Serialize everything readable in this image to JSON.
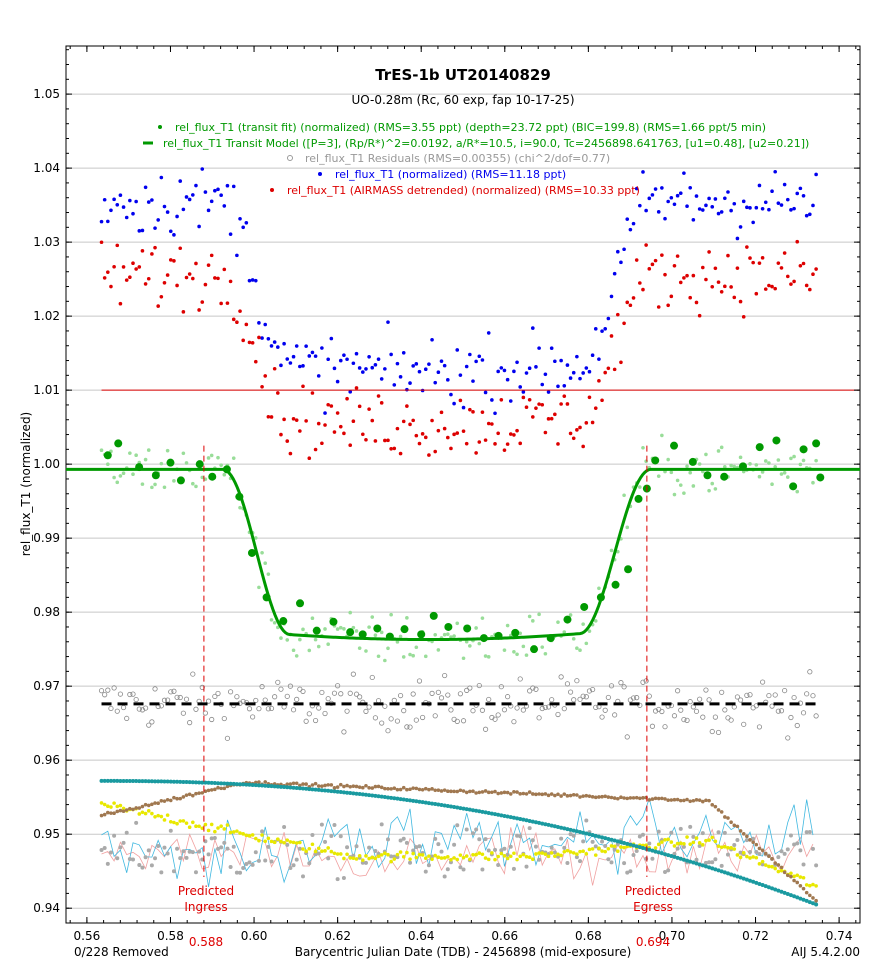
{
  "chart_data": {
    "type": "scatter",
    "title": "TrES-1b UT20140829",
    "subtitle": "UO-0.28m (Rc, 60 exp, fap 10-17-25)",
    "xlabel": "Barycentric Julian Date (TDB) - 2456898 (mid-exposure)",
    "ylabel": "rel_flux_T1 (normalized)",
    "xlim": [
      0.555,
      0.745
    ],
    "ylim": [
      0.938,
      1.0565
    ],
    "x_ticks": [
      0.56,
      0.58,
      0.6,
      0.62,
      0.64,
      0.66,
      0.68,
      0.7,
      0.72,
      0.74
    ],
    "x_tick_labels": [
      "0.56",
      "0.58",
      "0.60",
      "0.62",
      "0.64",
      "0.66",
      "0.68",
      "0.70",
      "0.72",
      "0.74"
    ],
    "y_ticks": [
      0.94,
      0.95,
      0.96,
      0.97,
      0.98,
      0.99,
      1.0,
      1.01,
      1.02,
      1.03,
      1.04,
      1.05
    ],
    "y_tick_labels": [
      "0.94",
      "0.95",
      "0.96",
      "0.97",
      "0.98",
      "0.99",
      "1.00",
      "1.01",
      "1.02",
      "1.03",
      "1.04",
      "1.05"
    ],
    "grid": "horizontal",
    "legend_placement": "top-center",
    "legend": [
      {
        "text": "rel_flux_T1 (transit fit) (normalized) (RMS=3.55 ppt) (depth=23.72 ppt) (BIC=199.8) (RMS=1.66 ppt/5 min)",
        "color": "#009900",
        "marker": "dot"
      },
      {
        "text": "rel_flux_T1 Transit Model ([P=3], (Rp/R*)^2=0.0192, a/R*=10.5, i=90.0, Tc=2456898.641763, [u1=0.48], [u2=0.21])",
        "color": "#009900",
        "marker": "line"
      },
      {
        "text": "rel_flux_T1 Residuals (RMS=0.00355) (chi^2/dof=0.77)",
        "color": "#999999",
        "marker": "circle"
      },
      {
        "text": "rel_flux_T1 (normalized) (RMS=11.18 ppt)",
        "color": "#0000ee",
        "marker": "dot"
      },
      {
        "text": "rel_flux_T1 (AIRMASS detrended) (normalized) (RMS=10.33 ppt)",
        "color": "#dd0000",
        "marker": "dot"
      }
    ],
    "annotations": {
      "ingress_label": [
        "Predicted",
        "Ingress"
      ],
      "ingress_value": "0.588",
      "ingress_x": 0.588,
      "egress_label": [
        "Predicted",
        "Egress"
      ],
      "egress_value": "0.694",
      "egress_x": 0.694,
      "removed": "0/228 Removed",
      "version": "AIJ 5.4.2.00"
    },
    "model": {
      "tc": 0.641763,
      "t1": 0.5925,
      "t2": 0.6085,
      "t3": 0.678,
      "t4": 0.695,
      "baseline": 0.9993,
      "bottom": 0.9763,
      "x_range": [
        0.555,
        0.745
      ]
    },
    "offsets": {
      "blue_baseline": 1.0355,
      "blue_bottom": 1.0125,
      "red_level": 1.01,
      "residual_level": 0.9676,
      "noise": {
        "green_small": 0.0035,
        "blue": 0.0045,
        "red": 0.0045,
        "residual": 0.0035
      }
    },
    "binned_green": [
      [
        0.565,
        1.0012
      ],
      [
        0.5675,
        1.0028
      ],
      [
        0.5725,
        0.9996
      ],
      [
        0.5765,
        0.9985
      ],
      [
        0.58,
        1.0002
      ],
      [
        0.5825,
        0.9978
      ],
      [
        0.587,
        1.0
      ],
      [
        0.59,
        0.9983
      ],
      [
        0.5935,
        0.9993
      ],
      [
        0.5965,
        0.9956
      ],
      [
        0.5995,
        0.988
      ],
      [
        0.603,
        0.982
      ],
      [
        0.607,
        0.9788
      ],
      [
        0.611,
        0.9812
      ],
      [
        0.615,
        0.9775
      ],
      [
        0.619,
        0.9787
      ],
      [
        0.623,
        0.9773
      ],
      [
        0.626,
        0.977
      ],
      [
        0.6295,
        0.9778
      ],
      [
        0.6325,
        0.9767
      ],
      [
        0.636,
        0.9777
      ],
      [
        0.64,
        0.977
      ],
      [
        0.643,
        0.9795
      ],
      [
        0.6465,
        0.978
      ],
      [
        0.651,
        0.9778
      ],
      [
        0.655,
        0.9765
      ],
      [
        0.6585,
        0.9768
      ],
      [
        0.6625,
        0.9772
      ],
      [
        0.667,
        0.975
      ],
      [
        0.671,
        0.9765
      ],
      [
        0.675,
        0.979
      ],
      [
        0.679,
        0.9807
      ],
      [
        0.683,
        0.982
      ],
      [
        0.6865,
        0.9837
      ],
      [
        0.6895,
        0.9858
      ],
      [
        0.692,
        0.9953
      ],
      [
        0.694,
        0.9967
      ],
      [
        0.696,
        1.0005
      ],
      [
        0.7005,
        1.0025
      ],
      [
        0.705,
        1.0003
      ],
      [
        0.7085,
        0.9985
      ],
      [
        0.7125,
        0.9983
      ],
      [
        0.717,
        0.9997
      ],
      [
        0.721,
        1.0023
      ],
      [
        0.725,
        1.0032
      ],
      [
        0.729,
        0.997
      ],
      [
        0.7315,
        1.002
      ],
      [
        0.7345,
        1.0028
      ],
      [
        0.7355,
        0.9982
      ]
    ],
    "comparison_stars": {
      "teal": {
        "color": "#1a9aa0",
        "start": 0.9572,
        "end": 0.9405,
        "x0": 0.5635,
        "x1": 0.7345
      },
      "brown": {
        "color": "#a07850",
        "start": 0.9525,
        "mid": 0.957,
        "end": 0.941
      },
      "yellow": {
        "color": "#e8e800",
        "start": 0.954,
        "low": 0.947,
        "end": 0.942
      },
      "gray": {
        "color": "#aaaaaa",
        "center": 0.9475,
        "amp": 0.0035
      },
      "pink_line": {
        "color": "#f0a0a0"
      },
      "cyan_line": {
        "color": "#40b8e0"
      }
    }
  }
}
